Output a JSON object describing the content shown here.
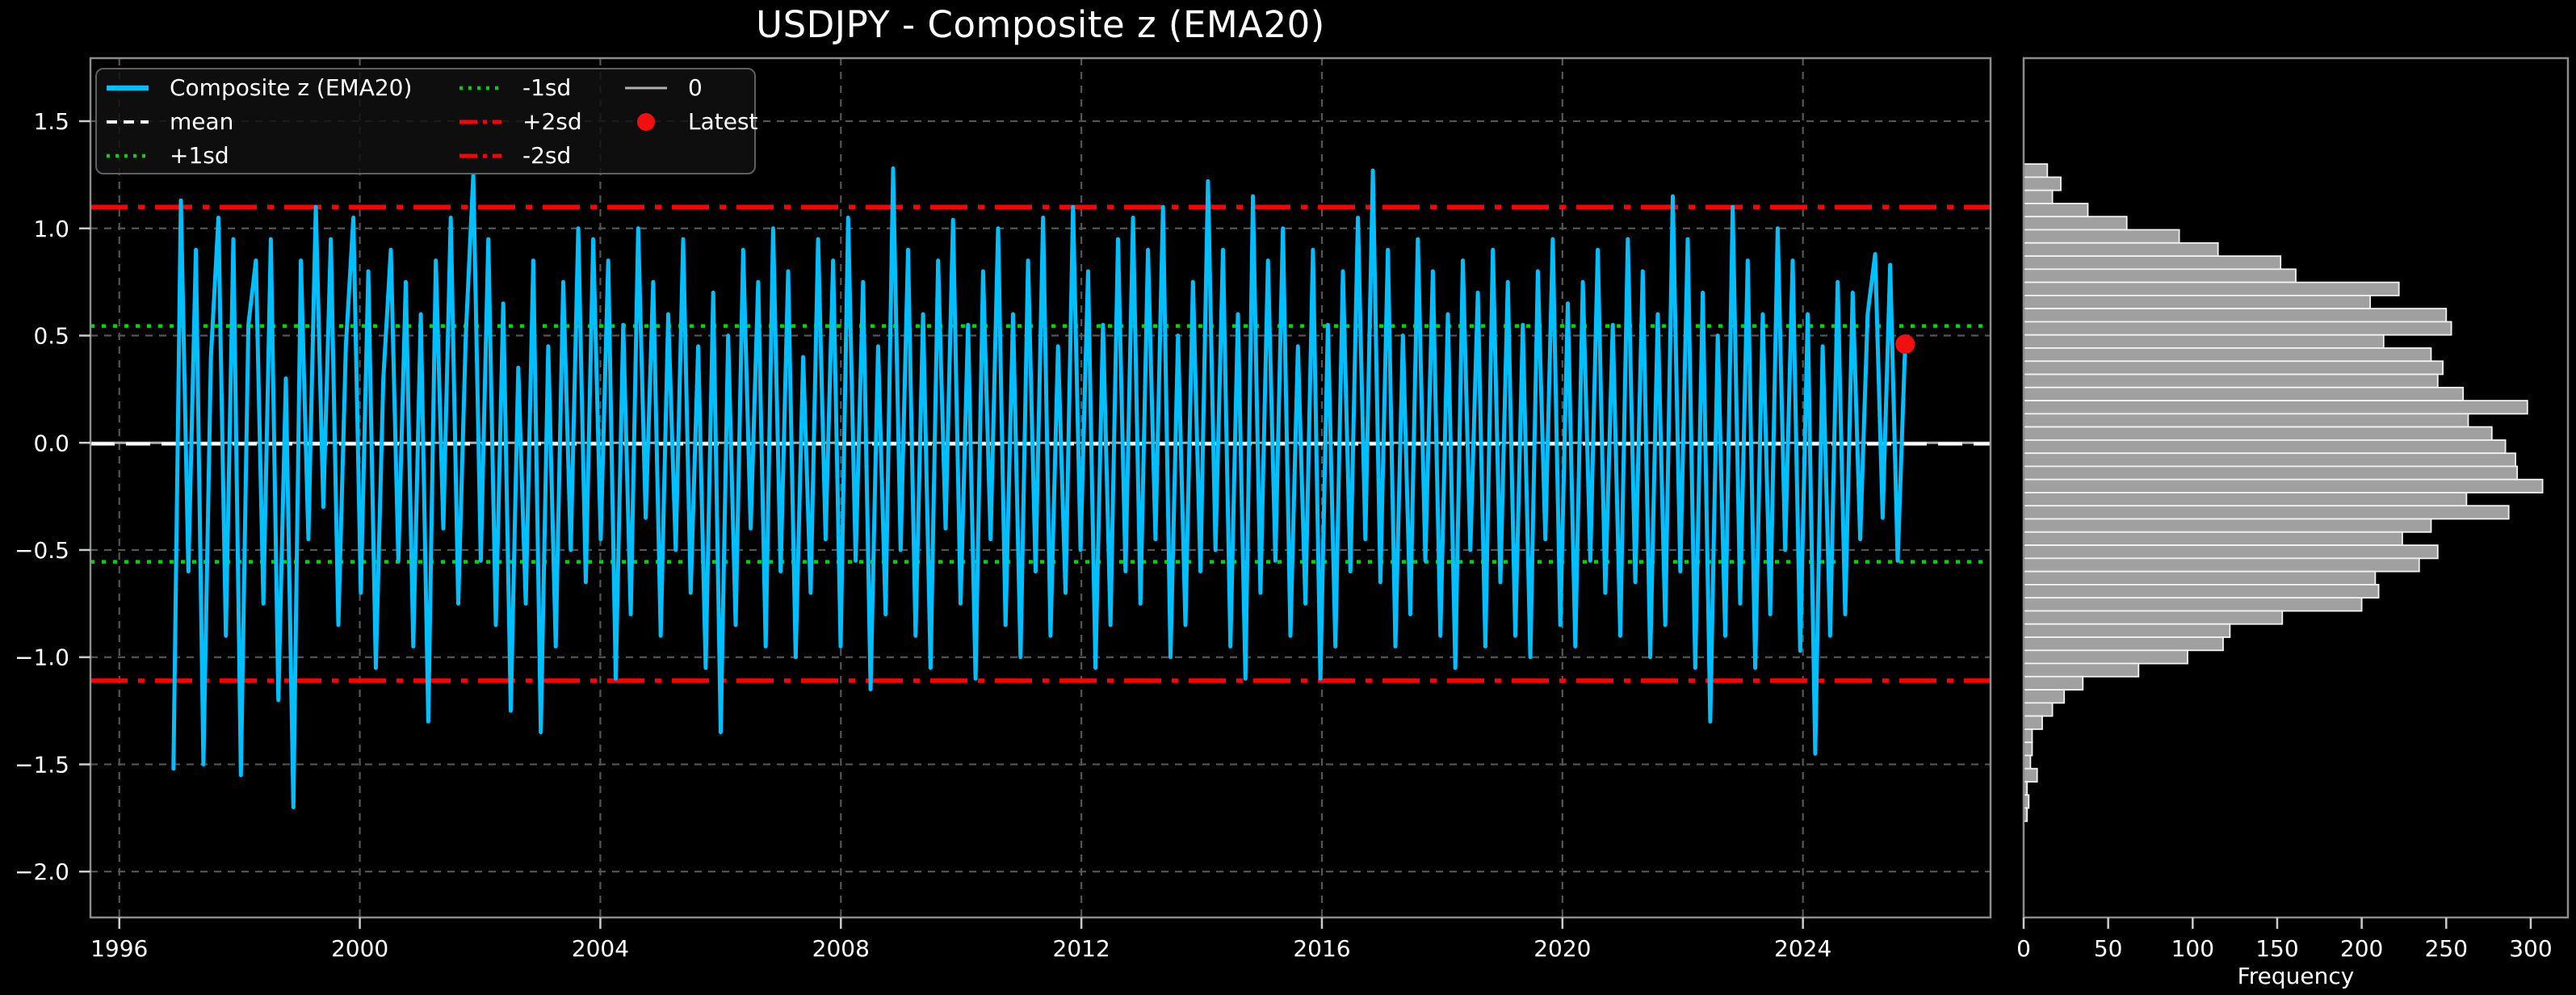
{
  "title": "USDJPY - Composite z (EMA20)",
  "colors": {
    "background": "#000000",
    "text": "#ffffff",
    "composite_line": "#00bfff",
    "grid": "#565656",
    "spine": "#8c8c8c",
    "tick": "#cccccc",
    "mean_line": "#ffffff",
    "sd1_line": "#00d400",
    "sd2_line": "#ff0000",
    "zero_line": "#b0b0b0",
    "latest_marker": "#f01010",
    "hist_fill": "#a0a0a0",
    "hist_edge": "#f2f2f2"
  },
  "legend": {
    "items": [
      {
        "label": "Composite z (EMA20)",
        "type": "line",
        "style": "solid",
        "color": "#00bfff",
        "dash": "",
        "lw": 6.5
      },
      {
        "label": "mean",
        "type": "line",
        "style": "dashed",
        "color": "#ffffff",
        "dash": "13 8",
        "lw": 4
      },
      {
        "label": "+1sd",
        "type": "line",
        "style": "dotted",
        "color": "#00d400",
        "dash": "4 7",
        "lw": 4.5
      },
      {
        "label": "-1sd",
        "type": "line",
        "style": "dotted",
        "color": "#00d400",
        "dash": "4 7",
        "lw": 4.5
      },
      {
        "label": "+2sd",
        "type": "line",
        "style": "dashdot",
        "color": "#ff0000",
        "dash": "22 7 5 7",
        "lw": 5
      },
      {
        "label": "-2sd",
        "type": "line",
        "style": "dashdot",
        "color": "#ff0000",
        "dash": "22 7 5 7",
        "lw": 5
      },
      {
        "label": "0",
        "type": "line",
        "style": "solid",
        "color": "#b0b0b0",
        "dash": "",
        "lw": 3
      },
      {
        "label": "Latest",
        "type": "marker",
        "style": "circle",
        "color": "#f01010",
        "dash": "",
        "lw": 0
      }
    ]
  },
  "chart_data": [
    {
      "type": "line",
      "title": "USDJPY - Composite z (EMA20)",
      "series_name": "Composite z (EMA20)",
      "xlabel": "",
      "ylabel": "",
      "x_start": 1996.9,
      "x_end": 2025.7,
      "values": [
        -1.52,
        1.13,
        -0.6,
        0.9,
        -1.5,
        0.4,
        1.05,
        -0.9,
        0.95,
        -1.55,
        0.55,
        0.85,
        -0.75,
        0.95,
        -1.2,
        0.3,
        -1.7,
        0.85,
        -0.45,
        1.1,
        -0.3,
        0.95,
        -0.85,
        0.45,
        1.05,
        -0.7,
        0.8,
        -1.05,
        0.3,
        0.9,
        -0.55,
        0.75,
        -0.95,
        0.6,
        -1.3,
        0.85,
        -0.4,
        1.05,
        -0.75,
        0.5,
        1.25,
        -0.55,
        0.95,
        -0.85,
        0.65,
        -1.25,
        0.35,
        -0.75,
        0.85,
        -1.35,
        0.45,
        -0.95,
        0.75,
        -0.5,
        1.0,
        -0.65,
        0.95,
        -0.45,
        0.85,
        -1.1,
        0.55,
        -0.8,
        1.0,
        -0.35,
        0.75,
        -0.9,
        0.6,
        -0.5,
        0.95,
        -0.7,
        0.45,
        -1.05,
        0.7,
        -1.35,
        0.5,
        -0.85,
        0.9,
        -0.4,
        0.75,
        -0.95,
        1.0,
        -0.6,
        0.8,
        -1.0,
        0.4,
        -0.7,
        0.95,
        -0.45,
        0.85,
        -0.95,
        1.05,
        -0.55,
        0.75,
        -1.15,
        0.45,
        -0.8,
        1.28,
        -0.5,
        0.9,
        -0.9,
        0.6,
        -1.05,
        0.85,
        -0.4,
        1.04,
        -0.75,
        0.55,
        -1.1,
        0.8,
        -0.45,
        1.0,
        -0.85,
        0.6,
        -1.0,
        0.85,
        -0.6,
        1.05,
        -0.9,
        0.45,
        -0.7,
        1.1,
        -0.5,
        0.8,
        -1.05,
        0.55,
        -0.85,
        0.95,
        -0.6,
        1.05,
        -0.75,
        0.9,
        -0.45,
        1.1,
        -1.0,
        0.5,
        -0.85,
        0.75,
        -0.6,
        1.22,
        -0.5,
        0.9,
        -0.95,
        0.6,
        -1.1,
        1.15,
        -0.7,
        0.85,
        -0.55,
        1.0,
        -0.9,
        0.45,
        -0.75,
        0.9,
        -1.1,
        0.55,
        -0.95,
        0.8,
        -0.6,
        1.05,
        -0.45,
        1.27,
        -0.65,
        0.9,
        -0.95,
        0.5,
        -0.8,
        0.95,
        -0.55,
        0.8,
        -0.9,
        0.6,
        -1.05,
        0.85,
        -0.5,
        0.7,
        -0.95,
        0.9,
        -0.65,
        0.75,
        -0.9,
        0.55,
        -1.0,
        0.8,
        -0.45,
        0.95,
        -0.85,
        0.65,
        -0.95,
        0.75,
        -0.55,
        0.9,
        -0.7,
        0.55,
        -0.9,
        0.95,
        -0.65,
        0.8,
        -1.0,
        0.6,
        -0.85,
        1.15,
        -0.6,
        0.95,
        -1.05,
        0.7,
        -1.3,
        0.5,
        -0.9,
        1.1,
        -0.75,
        0.85,
        -1.05,
        0.6,
        -0.8,
        1.0,
        -0.5,
        0.85,
        -0.97,
        0.6,
        -1.45,
        0.45,
        -0.9,
        0.75,
        -0.8,
        0.7,
        -0.45,
        0.6,
        0.88,
        -0.35,
        0.83,
        -0.55,
        0.46
      ],
      "x_ticks": [
        1996,
        2000,
        2004,
        2008,
        2012,
        2016,
        2020,
        2024
      ],
      "y_ticks": [
        1.5,
        1.0,
        0.5,
        0.0,
        -0.5,
        -1.0,
        -1.5,
        -2.0
      ],
      "y_tick_labels": [
        "1.5",
        "1.0",
        "0.5",
        "0.0",
        "−0.5",
        "−1.0",
        "−1.5",
        "−2.0"
      ],
      "xlim": [
        1995.52,
        2027.12
      ],
      "ylim": [
        -2.214,
        1.794
      ],
      "ref_lines": {
        "zero": 0.0,
        "mean": -0.005,
        "plus1sd": 0.545,
        "minus1sd": -0.555,
        "plus2sd": 1.1,
        "minus2sd": -1.11
      },
      "latest": {
        "x": 2025.7,
        "y": 0.46,
        "label": "Latest"
      },
      "grid": true,
      "legend_position": "upper left"
    },
    {
      "type": "bar",
      "orientation": "horizontal",
      "xlabel": "Frequency",
      "bin_top": 1.3,
      "bin_width": 0.0613,
      "frequencies": [
        14,
        22,
        17,
        38,
        61,
        92,
        115,
        152,
        161,
        222,
        205,
        250,
        253,
        213,
        241,
        248,
        245,
        260,
        298,
        263,
        277,
        285,
        291,
        292,
        307,
        262,
        287,
        241,
        224,
        245,
        234,
        208,
        210,
        200,
        153,
        122,
        118,
        97,
        68,
        35,
        24,
        17,
        11,
        5,
        5,
        4,
        8,
        2,
        3,
        2
      ],
      "x_ticks": [
        0,
        50,
        100,
        150,
        200,
        250,
        300
      ],
      "xlim": [
        0,
        322
      ],
      "grid": false
    }
  ]
}
